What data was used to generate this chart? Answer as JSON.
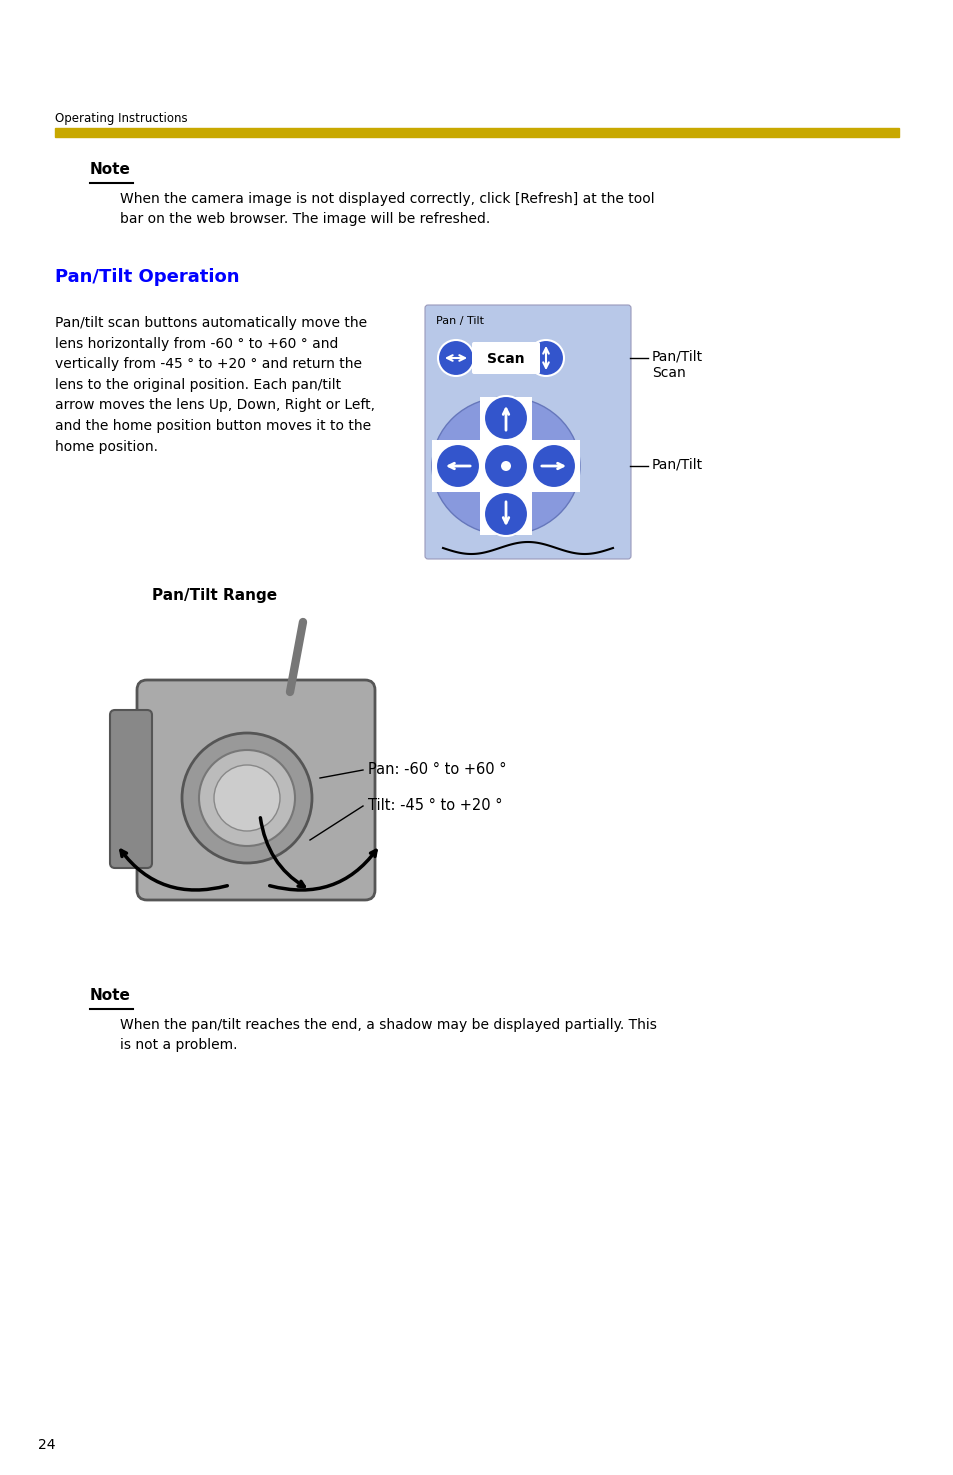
{
  "page_number": "24",
  "header_text": "Operating Instructions",
  "gold_bar_color": "#C8A800",
  "section_title": "Pan/Tilt Operation",
  "section_title_color": "#0000FF",
  "note1_title": "Note",
  "note1_body": "When the camera image is not displayed correctly, click [Refresh] at the tool\nbar on the web browser. The image will be refreshed.",
  "body_text": "Pan/tilt scan buttons automatically move the\nlens horizontally from -60 ° to +60 ° and\nvertically from -45 ° to +20 ° and return the\nlens to the original position. Each pan/tilt\narrow moves the lens Up, Down, Right or Left,\nand the home position button moves it to the\nhome position.",
  "pan_tilt_scan_label": "Pan/Tilt\nScan",
  "pan_tilt_label": "Pan/Tilt",
  "pan_label": "Pan / Tilt",
  "range_title": "Pan/Tilt Range",
  "pan_range_label": "Pan: -60 ° to +60 °",
  "tilt_range_label": "Tilt: -45 ° to +20 °",
  "note2_title": "Note",
  "note2_body": "When the pan/tilt reaches the end, a shadow may be displayed partially. This\nis not a problem.",
  "bg_color": "#FFFFFF",
  "text_color": "#000000",
  "blue_button_color": "#3355CC",
  "light_blue_bg": "#B8C8E8"
}
